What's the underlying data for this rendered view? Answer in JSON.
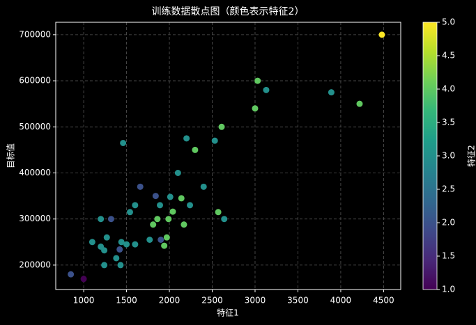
{
  "chart_data": {
    "type": "scatter",
    "title": "训练数据散点图（颜色表示特征2）",
    "x_label": "特征1",
    "y_label": "目标值",
    "colorbar_label": "特征2",
    "colormap": "viridis",
    "x": [
      4480,
      3030,
      3130,
      3890,
      4220,
      3000,
      2610,
      1460,
      2200,
      2530,
      2300,
      2100,
      1660,
      2400,
      1840,
      2010,
      2140,
      1600,
      1890,
      2240,
      1540,
      2040,
      2570,
      1200,
      1320,
      1860,
      1990,
      2640,
      1810,
      2170,
      1100,
      1270,
      1440,
      1500,
      1600,
      1770,
      1900,
      1970,
      1200,
      1240,
      1420,
      1940,
      1380,
      1240,
      1430,
      850,
      1000
    ],
    "y": [
      700000,
      600000,
      580000,
      575000,
      550000,
      540000,
      500000,
      465000,
      475000,
      470000,
      450000,
      400000,
      370000,
      370000,
      350000,
      348000,
      345000,
      330000,
      330000,
      330000,
      315000,
      316000,
      315000,
      300000,
      300000,
      300000,
      300000,
      300000,
      288000,
      288000,
      250000,
      260000,
      250000,
      245000,
      245000,
      255000,
      255000,
      260000,
      240000,
      232000,
      234000,
      242000,
      215000,
      200000,
      200000,
      180000,
      170000
    ],
    "color_values": [
      5,
      4,
      3,
      3,
      4,
      4,
      4,
      3,
      3,
      3,
      4,
      3,
      2,
      3,
      2,
      3,
      4,
      3,
      3,
      3,
      3,
      4,
      4,
      3,
      2,
      4,
      4,
      3,
      4,
      4,
      3,
      3,
      3,
      3,
      3,
      3,
      2,
      4,
      3,
      3,
      2,
      4,
      3,
      3,
      3,
      2,
      1
    ],
    "xlim": [
      674,
      4700
    ],
    "ylim": [
      147000,
      727000
    ],
    "clim": [
      1,
      5
    ],
    "xticks": [
      1000,
      1500,
      2000,
      2500,
      3000,
      3500,
      4000,
      4500
    ],
    "yticks": [
      200000,
      300000,
      400000,
      500000,
      600000,
      700000
    ],
    "cticks": [
      {
        "value": 1,
        "label": "1.0"
      },
      {
        "value": 1.5,
        "label": "1.5"
      },
      {
        "value": 2,
        "label": "2.0"
      },
      {
        "value": 2.5,
        "label": "2.5"
      },
      {
        "value": 3,
        "label": "3.0"
      },
      {
        "value": 3.5,
        "label": "3.5"
      },
      {
        "value": 4,
        "label": "4.0"
      },
      {
        "value": 4.5,
        "label": "4.5"
      },
      {
        "value": 5,
        "label": "5.0"
      }
    ],
    "grid": true
  }
}
